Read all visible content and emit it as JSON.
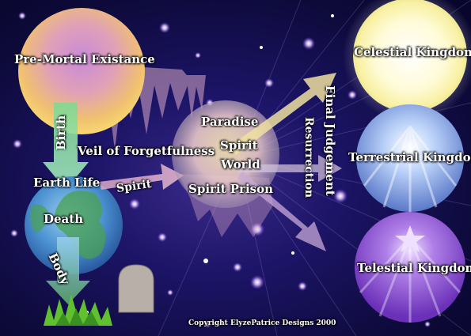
{
  "labels": {
    "pre_mortal": "Pre-Mortal Existance",
    "birth": "Birth",
    "veil": "Veil of Forgetfulness",
    "earth_life": "Earth Life",
    "spirit_arrow": "Spirit",
    "death": "Death",
    "body": "Body",
    "paradise": "Paradise",
    "spirit_world_line1": "Spirit",
    "spirit_world_line2": "World",
    "spirit_prison": "Spirit Prison",
    "resurrection": "Resurrection",
    "final_judgement": "Final Judgement",
    "celestial": "Celestial Kingdom",
    "terrestrial": "Terrestrial Kingdom",
    "telestial": "Telestial Kingdom",
    "copyright": "Copyright ElyzePatrice Designs 2000"
  },
  "colors": {
    "background": "#0d0a3a",
    "arrow": "#e8c8d8",
    "celestial": "#fffbe0",
    "terrestrial": "#a8c0f0",
    "telestial": "#a070e0"
  }
}
